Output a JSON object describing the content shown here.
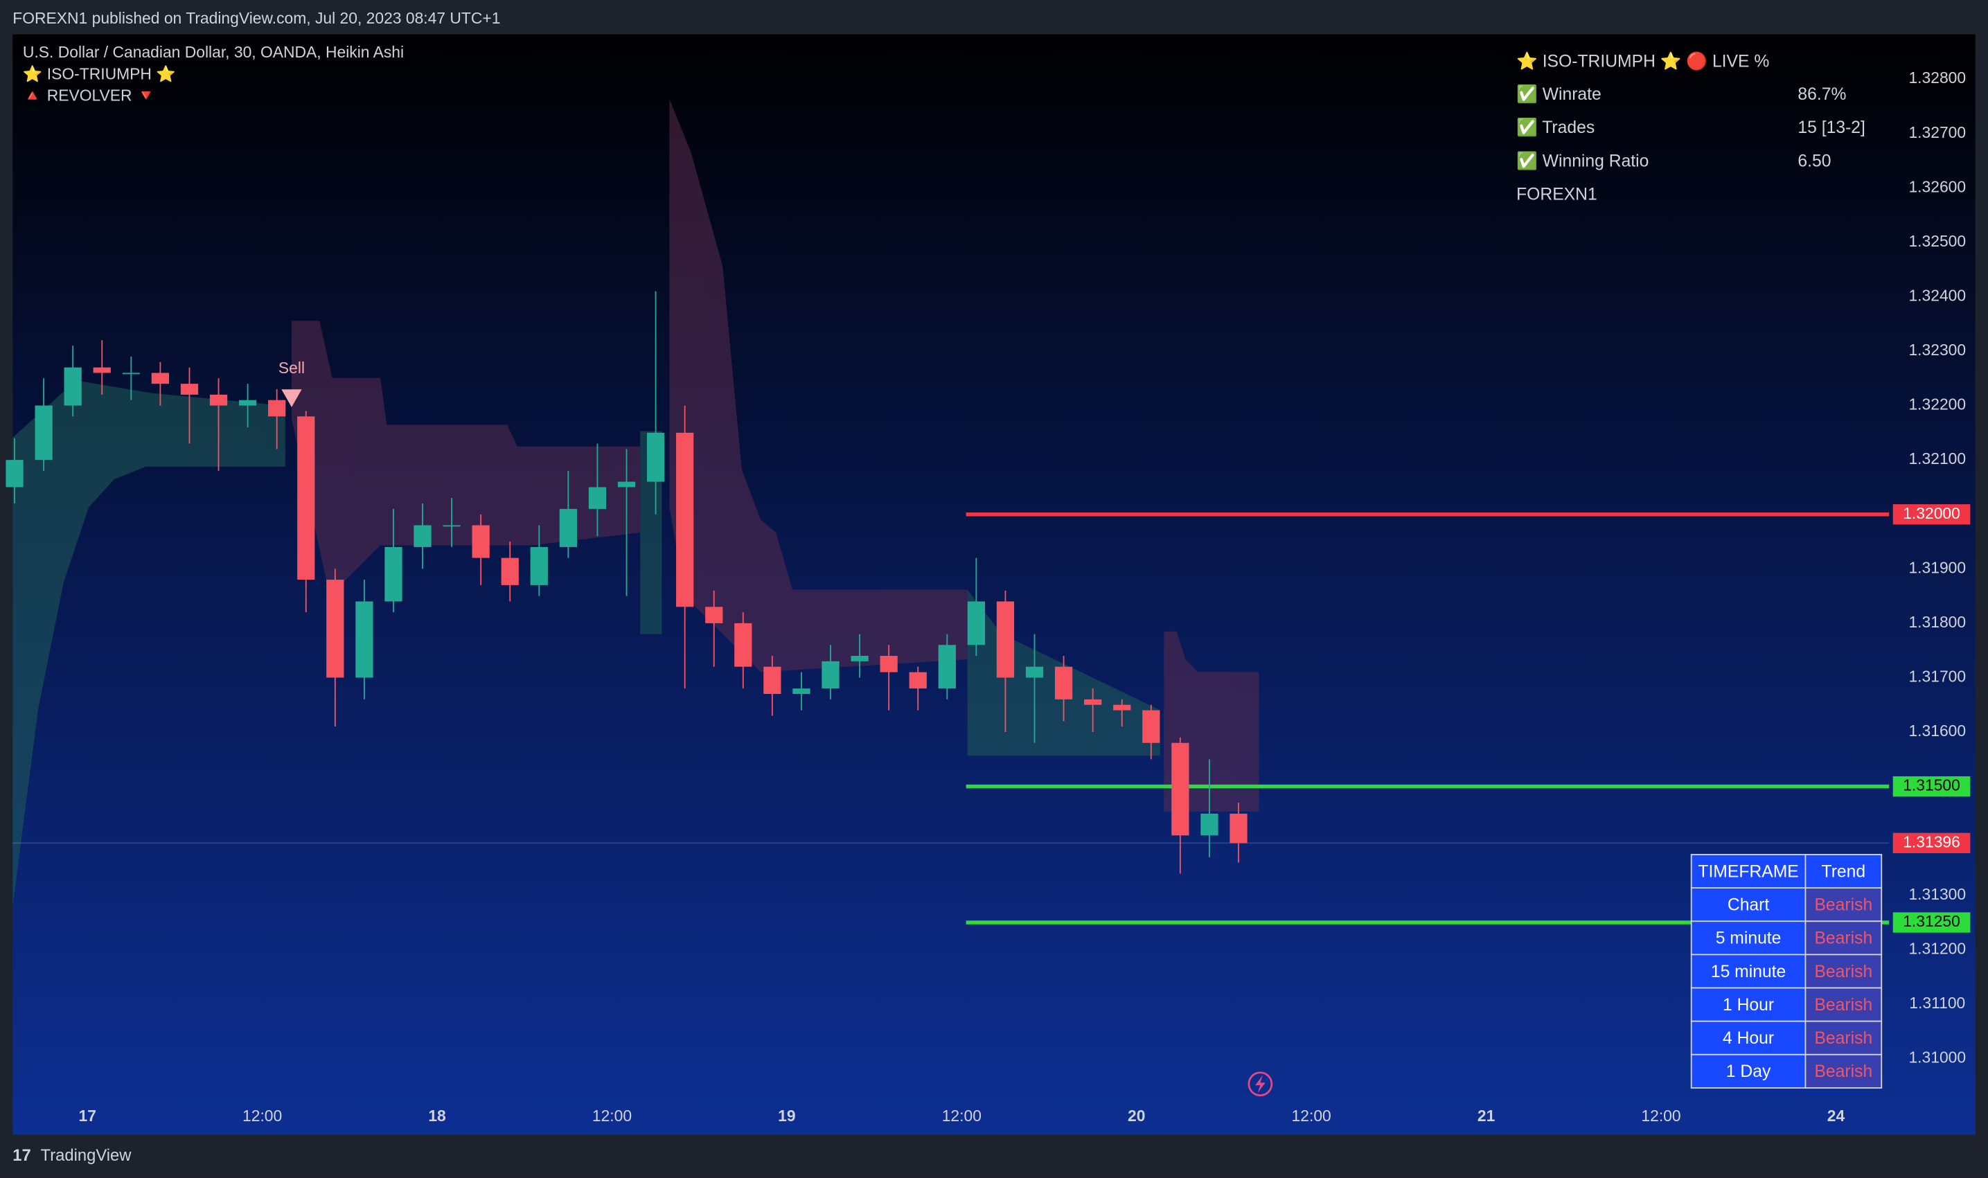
{
  "page": {
    "publisher_line": "FOREXN1 published on TradingView.com, Jul 20, 2023 08:47 UTC+1",
    "footer": "TradingView"
  },
  "chart_data": {
    "type": "candlestick",
    "title": "U.S. Dollar / Canadian Dollar, 30, OANDA, Heikin Ashi",
    "indicators": [
      "⭐ ISO-TRIUMPH ⭐",
      "🔺 REVOLVER 🔻"
    ],
    "annotations": [
      "Sell"
    ],
    "x": [
      -5,
      -3,
      -1,
      1,
      3,
      5,
      7,
      9,
      11,
      13,
      15,
      17,
      19,
      21,
      23,
      25,
      27,
      29,
      31,
      33,
      35,
      37,
      39,
      41,
      43,
      45,
      47,
      49,
      51,
      53,
      55,
      57,
      59,
      61,
      63,
      65,
      67,
      69,
      71,
      73,
      75,
      77,
      79
    ],
    "open": [
      1.3205,
      1.321,
      1.322,
      1.3227,
      1.3226,
      1.3226,
      1.3224,
      1.3222,
      1.322,
      1.3221,
      1.3218,
      1.3188,
      1.317,
      1.3184,
      1.3194,
      1.3198,
      1.3198,
      1.3192,
      1.3187,
      1.3194,
      1.3201,
      1.3205,
      1.3206,
      1.3215,
      1.3183,
      1.318,
      1.3172,
      1.3167,
      1.3168,
      1.3173,
      1.3174,
      1.3171,
      1.3168,
      1.3176,
      1.3184,
      1.317,
      1.3172,
      1.3166,
      1.3165,
      1.3164,
      1.3158,
      1.3141,
      1.3145
    ],
    "high": [
      1.3214,
      1.3225,
      1.3231,
      1.3232,
      1.3229,
      1.3228,
      1.3227,
      1.3225,
      1.3224,
      1.3223,
      1.3219,
      1.319,
      1.3188,
      1.3201,
      1.3202,
      1.3203,
      1.32,
      1.3195,
      1.3198,
      1.3208,
      1.3213,
      1.3212,
      1.3241,
      1.322,
      1.3186,
      1.3182,
      1.3174,
      1.3171,
      1.3176,
      1.3178,
      1.3176,
      1.3172,
      1.3178,
      1.3192,
      1.3186,
      1.3178,
      1.3174,
      1.3168,
      1.3166,
      1.3165,
      1.3159,
      1.3155,
      1.3147
    ],
    "low": [
      1.3202,
      1.3208,
      1.3218,
      1.3222,
      1.3221,
      1.322,
      1.3213,
      1.3208,
      1.3216,
      1.3212,
      1.3182,
      1.3161,
      1.3166,
      1.3182,
      1.319,
      1.3194,
      1.3187,
      1.3184,
      1.3185,
      1.3192,
      1.3196,
      1.3185,
      1.32,
      1.3168,
      1.3172,
      1.3168,
      1.3163,
      1.3164,
      1.3166,
      1.317,
      1.3164,
      1.3164,
      1.3166,
      1.3174,
      1.316,
      1.3158,
      1.3162,
      1.316,
      1.3161,
      1.3155,
      1.3134,
      1.3137,
      1.3136
    ],
    "close": [
      1.321,
      1.322,
      1.3227,
      1.3226,
      1.3226,
      1.3224,
      1.3222,
      1.322,
      1.3221,
      1.3218,
      1.3188,
      1.317,
      1.3184,
      1.3194,
      1.3198,
      1.3198,
      1.3192,
      1.3187,
      1.3194,
      1.3201,
      1.3205,
      1.3206,
      1.3215,
      1.3183,
      1.318,
      1.3172,
      1.3167,
      1.3168,
      1.3173,
      1.3174,
      1.3171,
      1.3168,
      1.3176,
      1.3184,
      1.317,
      1.3172,
      1.3166,
      1.3165,
      1.3164,
      1.3158,
      1.3141,
      1.3145,
      1.31396
    ],
    "up_color": "#22ab94",
    "down_color": "#f7525f",
    "xlim": [
      -5.13,
      123.65
    ],
    "xticks": [
      {
        "value": 0,
        "label": "17"
      },
      {
        "value": 12,
        "label": "12:00"
      },
      {
        "value": 24,
        "label": "18"
      },
      {
        "value": 36,
        "label": "12:00"
      },
      {
        "value": 48,
        "label": "19"
      },
      {
        "value": 60,
        "label": "12:00"
      },
      {
        "value": 72,
        "label": "20"
      },
      {
        "value": 84,
        "label": "12:00"
      },
      {
        "value": 96,
        "label": "21"
      },
      {
        "value": 108,
        "label": "12:00"
      },
      {
        "value": 120,
        "label": "24"
      }
    ],
    "ylim": [
      1.3086,
      1.32882
    ],
    "yticks": [
      {
        "value": 1.328,
        "label": "1.32800"
      },
      {
        "value": 1.327,
        "label": "1.32700"
      },
      {
        "value": 1.326,
        "label": "1.32600"
      },
      {
        "value": 1.325,
        "label": "1.32500"
      },
      {
        "value": 1.324,
        "label": "1.32400"
      },
      {
        "value": 1.323,
        "label": "1.32300"
      },
      {
        "value": 1.322,
        "label": "1.32200"
      },
      {
        "value": 1.321,
        "label": "1.32100"
      },
      {
        "value": 1.319,
        "label": "1.31900"
      },
      {
        "value": 1.318,
        "label": "1.31800"
      },
      {
        "value": 1.317,
        "label": "1.31700"
      },
      {
        "value": 1.316,
        "label": "1.31600"
      },
      {
        "value": 1.313,
        "label": "1.31300"
      },
      {
        "value": 1.312,
        "label": "1.31200"
      },
      {
        "value": 1.311,
        "label": "1.31100"
      },
      {
        "value": 1.31,
        "label": "1.31000"
      }
    ],
    "grid": false,
    "levels": [
      {
        "value": 1.32,
        "label": "1.32000",
        "color": "#f23645",
        "x0": 60.3
      },
      {
        "value": 1.315,
        "label": "1.31500",
        "color": "#2bdc3a",
        "x0": 60.3
      },
      {
        "value": 1.3125,
        "label": "1.31250",
        "color": "#2bdc3a",
        "x0": 60.3
      }
    ],
    "last_price": {
      "value": 1.31396,
      "label": "1.31396",
      "color": "#f23645"
    },
    "stats": {
      "title": "⭐ ISO-TRIUMPH ⭐  🔴 LIVE %",
      "rows": [
        [
          "✅ Winrate",
          "86.7%"
        ],
        [
          "✅ Trades",
          "15 [13-2]"
        ],
        [
          "✅ Winning Ratio",
          "6.50"
        ]
      ],
      "footer": "FOREXN1"
    },
    "trend_table": {
      "header": [
        "TIMEFRAME",
        "Trend"
      ],
      "rows": [
        [
          "Chart",
          "Bearish"
        ],
        [
          "5 minute",
          "Bearish"
        ],
        [
          "15 minute",
          "Bearish"
        ],
        [
          "1 Hour",
          "Bearish"
        ],
        [
          "4 Hour",
          "Bearish"
        ],
        [
          "1 Day",
          "Bearish"
        ]
      ]
    }
  }
}
